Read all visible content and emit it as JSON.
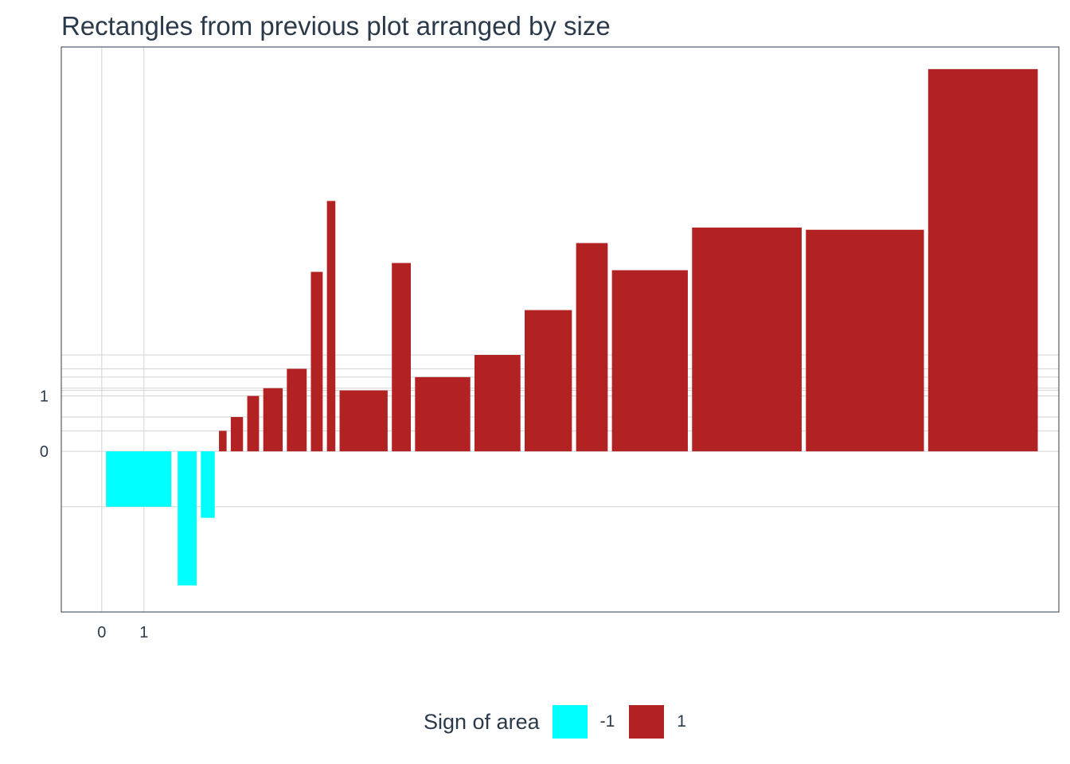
{
  "chart_data": {
    "type": "bar",
    "title": "Rectangles from previous plot arranged by size",
    "xlabel": "",
    "ylabel": "",
    "x_ticks": [
      0,
      1
    ],
    "y_ticks": [
      0,
      1
    ],
    "xlim": [
      -0.96,
      22.7
    ],
    "ylim": [
      -2.9,
      7.3
    ],
    "grid": true,
    "legend_position": "bottom",
    "legend": {
      "title": "Sign of area",
      "entries": [
        {
          "label": "-1",
          "color": "#00ffff"
        },
        {
          "label": "1",
          "color": "#b22222"
        }
      ]
    },
    "colors": {
      "-1": "#00ffff",
      "1": "#b22222"
    },
    "bars": [
      {
        "xmin": 0.1,
        "xmax": 1.65,
        "ymin": -1.0,
        "ymax": 0.0,
        "sign": -1
      },
      {
        "xmin": 1.8,
        "xmax": 2.25,
        "ymin": -2.42,
        "ymax": 0.0,
        "sign": -1
      },
      {
        "xmin": 2.35,
        "xmax": 2.68,
        "ymin": -1.2,
        "ymax": 0.0,
        "sign": -1
      },
      {
        "xmin": 2.78,
        "xmax": 2.96,
        "ymin": 0.0,
        "ymax": 0.37,
        "sign": 1
      },
      {
        "xmin": 3.06,
        "xmax": 3.35,
        "ymin": 0.0,
        "ymax": 0.62,
        "sign": 1
      },
      {
        "xmin": 3.45,
        "xmax": 3.73,
        "ymin": 0.0,
        "ymax": 1.0,
        "sign": 1
      },
      {
        "xmin": 3.83,
        "xmax": 4.29,
        "ymin": 0.0,
        "ymax": 1.14,
        "sign": 1
      },
      {
        "xmin": 4.39,
        "xmax": 4.86,
        "ymin": 0.0,
        "ymax": 1.49,
        "sign": 1
      },
      {
        "xmin": 4.96,
        "xmax": 5.24,
        "ymin": 0.0,
        "ymax": 3.24,
        "sign": 1
      },
      {
        "xmin": 5.34,
        "xmax": 5.54,
        "ymin": 0.0,
        "ymax": 4.52,
        "sign": 1
      },
      {
        "xmin": 5.64,
        "xmax": 6.78,
        "ymin": 0.0,
        "ymax": 1.1,
        "sign": 1
      },
      {
        "xmin": 6.88,
        "xmax": 7.33,
        "ymin": 0.0,
        "ymax": 3.4,
        "sign": 1
      },
      {
        "xmin": 7.43,
        "xmax": 8.74,
        "ymin": 0.0,
        "ymax": 1.34,
        "sign": 1
      },
      {
        "xmin": 8.84,
        "xmax": 9.93,
        "ymin": 0.0,
        "ymax": 1.74,
        "sign": 1
      },
      {
        "xmin": 10.03,
        "xmax": 11.15,
        "ymin": 0.0,
        "ymax": 2.55,
        "sign": 1
      },
      {
        "xmin": 11.25,
        "xmax": 12.0,
        "ymin": 0.0,
        "ymax": 3.76,
        "sign": 1
      },
      {
        "xmin": 12.1,
        "xmax": 13.9,
        "ymin": 0.0,
        "ymax": 3.27,
        "sign": 1
      },
      {
        "xmin": 14.0,
        "xmax": 16.6,
        "ymin": 0.0,
        "ymax": 4.04,
        "sign": 1
      },
      {
        "xmin": 16.7,
        "xmax": 19.5,
        "ymin": 0.0,
        "ymax": 4.0,
        "sign": 1
      },
      {
        "xmin": 19.6,
        "xmax": 22.2,
        "ymin": 0.0,
        "ymax": 6.9,
        "sign": 1
      }
    ]
  }
}
